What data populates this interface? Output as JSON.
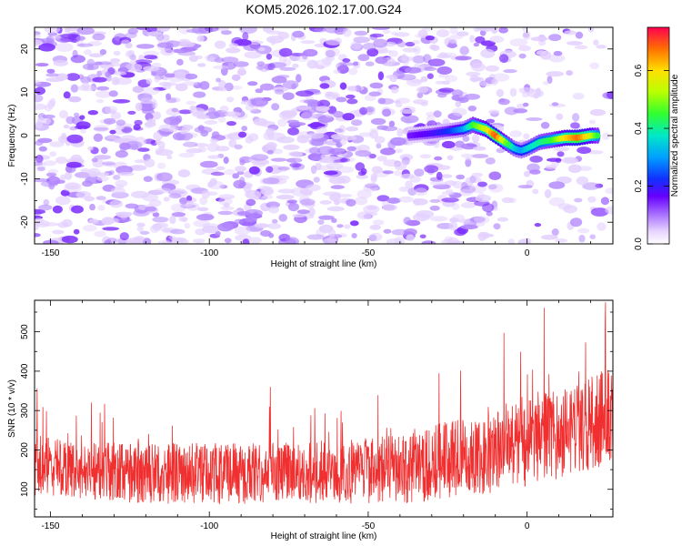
{
  "title": "KOM5.2026.102.17.00.G24",
  "chart_data": [
    {
      "type": "heatmap",
      "name": "spectrogram",
      "xlabel": "Height of straight line (km)",
      "ylabel": "Frequency (Hz)",
      "xlim": [
        -155,
        27
      ],
      "ylim": [
        -25,
        25
      ],
      "xticks": [
        -150,
        -100,
        -50,
        0
      ],
      "yticks": [
        -20,
        -10,
        0,
        10,
        20
      ],
      "colorbar": {
        "label": "Normalized spectral amplitude",
        "range": [
          0.0,
          0.75
        ],
        "ticks": [
          0.0,
          0.2,
          0.4,
          0.6
        ]
      },
      "signal_track": {
        "x": [
          -37,
          -30,
          -25,
          -20,
          -17,
          -13,
          -10,
          -7,
          -4,
          -2,
          0,
          4,
          8,
          12,
          16,
          20,
          23
        ],
        "frequency": [
          0,
          0.5,
          1,
          1.5,
          2.5,
          1.5,
          0,
          -1.5,
          -3,
          -3.5,
          -3,
          -1.5,
          -1,
          -0.5,
          -0.5,
          0,
          0
        ],
        "amplitude": [
          0.15,
          0.18,
          0.22,
          0.3,
          0.45,
          0.55,
          0.7,
          0.5,
          0.35,
          0.3,
          0.35,
          0.4,
          0.45,
          0.6,
          0.68,
          0.55,
          0.4
        ]
      }
    },
    {
      "type": "line",
      "name": "snr",
      "xlabel": "Height of straight line (km)",
      "ylabel": "SNR (10 * v/v)",
      "xlim": [
        -155,
        27
      ],
      "ylim": [
        30,
        580
      ],
      "xticks": [
        -150,
        -100,
        -50,
        0
      ],
      "yticks": [
        100,
        200,
        300,
        400,
        500
      ],
      "color": "#f03030",
      "trend": {
        "x": [
          -155,
          -120,
          -90,
          -60,
          -40,
          -25,
          -10,
          0,
          10,
          20,
          27
        ],
        "y": [
          160,
          140,
          140,
          145,
          150,
          175,
          195,
          215,
          240,
          270,
          290
        ]
      },
      "spread": {
        "x": [
          -155,
          -60,
          -30,
          0,
          27
        ],
        "y": [
          75,
          80,
          95,
          110,
          125
        ]
      }
    }
  ]
}
